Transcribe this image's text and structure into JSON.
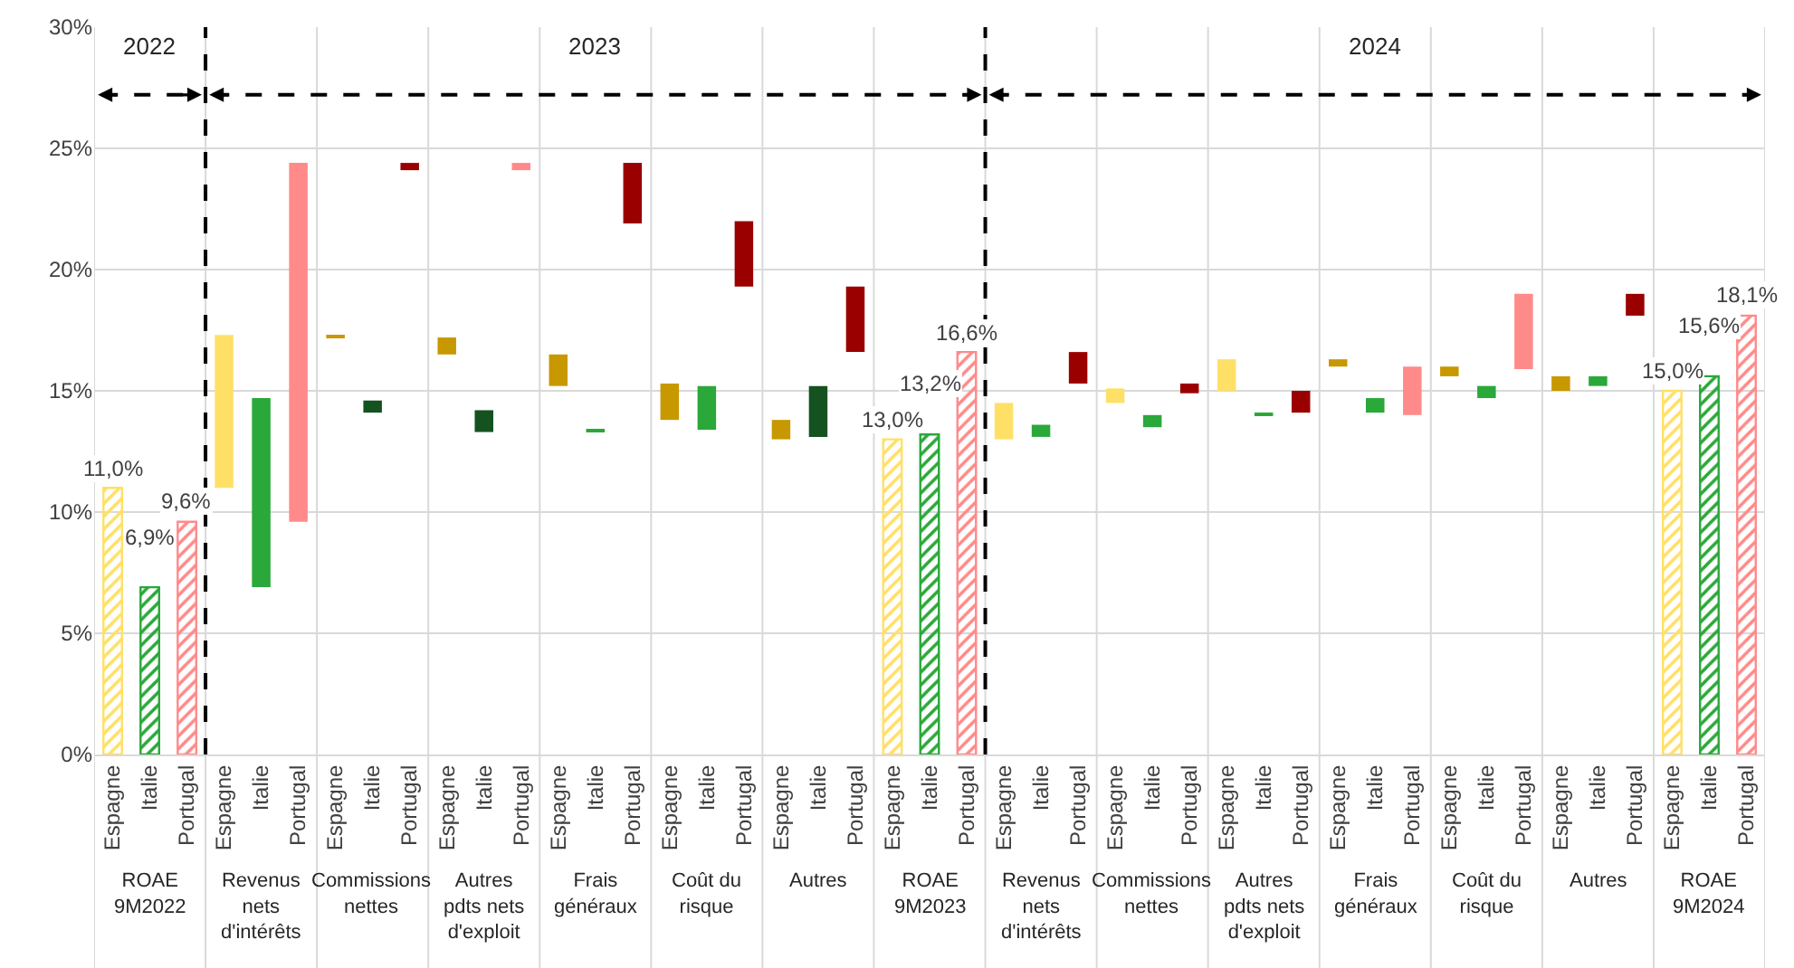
{
  "chart_data": {
    "type": "bar",
    "categories": [
      "Espagne",
      "Italie",
      "Portugal",
      "Espagne",
      "Italie",
      "Portugal",
      "Espagne",
      "Italie",
      "Portugal",
      "Espagne",
      "Italie",
      "Portugal",
      "Espagne",
      "Italie",
      "Portugal",
      "Espagne",
      "Italie",
      "Portugal",
      "Espagne",
      "Italie",
      "Portugal",
      "Espagne",
      "Italie",
      "Portugal",
      "Espagne",
      "Italie",
      "Portugal",
      "Espagne",
      "Italie",
      "Portugal",
      "Espagne",
      "Italie",
      "Portugal",
      "Espagne",
      "Italie",
      "Portugal",
      "Espagne",
      "Italie",
      "Portugal",
      "Espagne",
      "Italie",
      "Portugal",
      "Espagne",
      "Italie",
      "Portugal"
    ],
    "values": [
      11.0,
      6.9,
      9.6,
      6.3,
      7.8,
      14.8,
      0.1,
      0.5,
      0.3,
      0.7,
      0.9,
      0.3,
      1.3,
      0.1,
      2.5,
      1.5,
      1.8,
      2.7,
      0.8,
      2.1,
      2.7,
      13.0,
      13.2,
      16.6,
      1.5,
      0.5,
      1.3,
      0.6,
      0.5,
      0.4,
      1.3,
      0.1,
      0.9,
      0.3,
      0.6,
      2.0,
      0.4,
      0.5,
      3.1,
      0.6,
      0.4,
      0.9,
      15.0,
      15.6,
      18.1
    ],
    "base": [
      null,
      null,
      null,
      11.0,
      6.9,
      9.6,
      17.2,
      14.1,
      24.1,
      16.5,
      13.3,
      24.1,
      15.2,
      13.3,
      21.9,
      13.8,
      13.4,
      19.3,
      13.0,
      13.1,
      16.6,
      null,
      null,
      null,
      13.0,
      13.1,
      15.3,
      14.5,
      13.5,
      14.9,
      15.0,
      14.0,
      14.1,
      16.0,
      14.1,
      14.0,
      15.6,
      14.7,
      15.9,
      15.0,
      15.2,
      18.1,
      null,
      null,
      null
    ],
    "colors": [
      "#ffe066",
      "#2aa83a",
      "#ff8a8a",
      "#ffe066",
      "#2aa83a",
      "#ff8a8a",
      "#c89800",
      "#145220",
      "#9a0000",
      "#c89800",
      "#145220",
      "#ff8a8a",
      "#c89800",
      "#2aa83a",
      "#9a0000",
      "#c89800",
      "#2aa83a",
      "#9a0000",
      "#c89800",
      "#145220",
      "#9a0000",
      "#ffe066",
      "#2aa83a",
      "#ff8a8a",
      "#ffe066",
      "#2aa83a",
      "#9a0000",
      "#ffe066",
      "#2aa83a",
      "#9a0000",
      "#ffe066",
      "#2aa83a",
      "#9a0000",
      "#c89800",
      "#2aa83a",
      "#ff8a8a",
      "#c89800",
      "#2aa83a",
      "#ff8a8a",
      "#c89800",
      "#2aa83a",
      "#9a0000",
      "#ffe066",
      "#2aa83a",
      "#ff8a8a"
    ],
    "value_labels": [
      "11,0%",
      "6,9%",
      "9,6%",
      null,
      null,
      null,
      null,
      null,
      null,
      null,
      null,
      null,
      null,
      null,
      null,
      null,
      null,
      null,
      null,
      null,
      null,
      "13,0%",
      "13,2%",
      "16,6%",
      null,
      null,
      null,
      null,
      null,
      null,
      null,
      null,
      null,
      null,
      null,
      null,
      null,
      null,
      null,
      null,
      null,
      null,
      "15,0%",
      "15,6%",
      "18,1%"
    ],
    "ylim": [
      0,
      30
    ],
    "yticks": [
      {
        "value": 0,
        "label": "0%"
      },
      {
        "value": 5,
        "label": "5%"
      },
      {
        "value": 10,
        "label": "10%"
      },
      {
        "value": 15,
        "label": "15%"
      },
      {
        "value": 20,
        "label": "20%"
      },
      {
        "value": 25,
        "label": "25%"
      },
      {
        "value": 30,
        "label": "30%"
      }
    ],
    "grid": "y",
    "annotations": [
      "2022",
      "2023",
      "2024",
      "ROAE 9M2022",
      "Revenus nets d'intérêts",
      "Commissions nettes",
      "Autres pdts nets d'exploit",
      "Frais généraux",
      "Coût du risque",
      "Autres",
      "ROAE 9M2023",
      "Revenus nets d'intérêts",
      "Commissions nettes",
      "Autres pdts nets d'exploit",
      "Frais généraux",
      "Coût du risque",
      "Autres",
      "ROAE 9M2024"
    ]
  }
}
